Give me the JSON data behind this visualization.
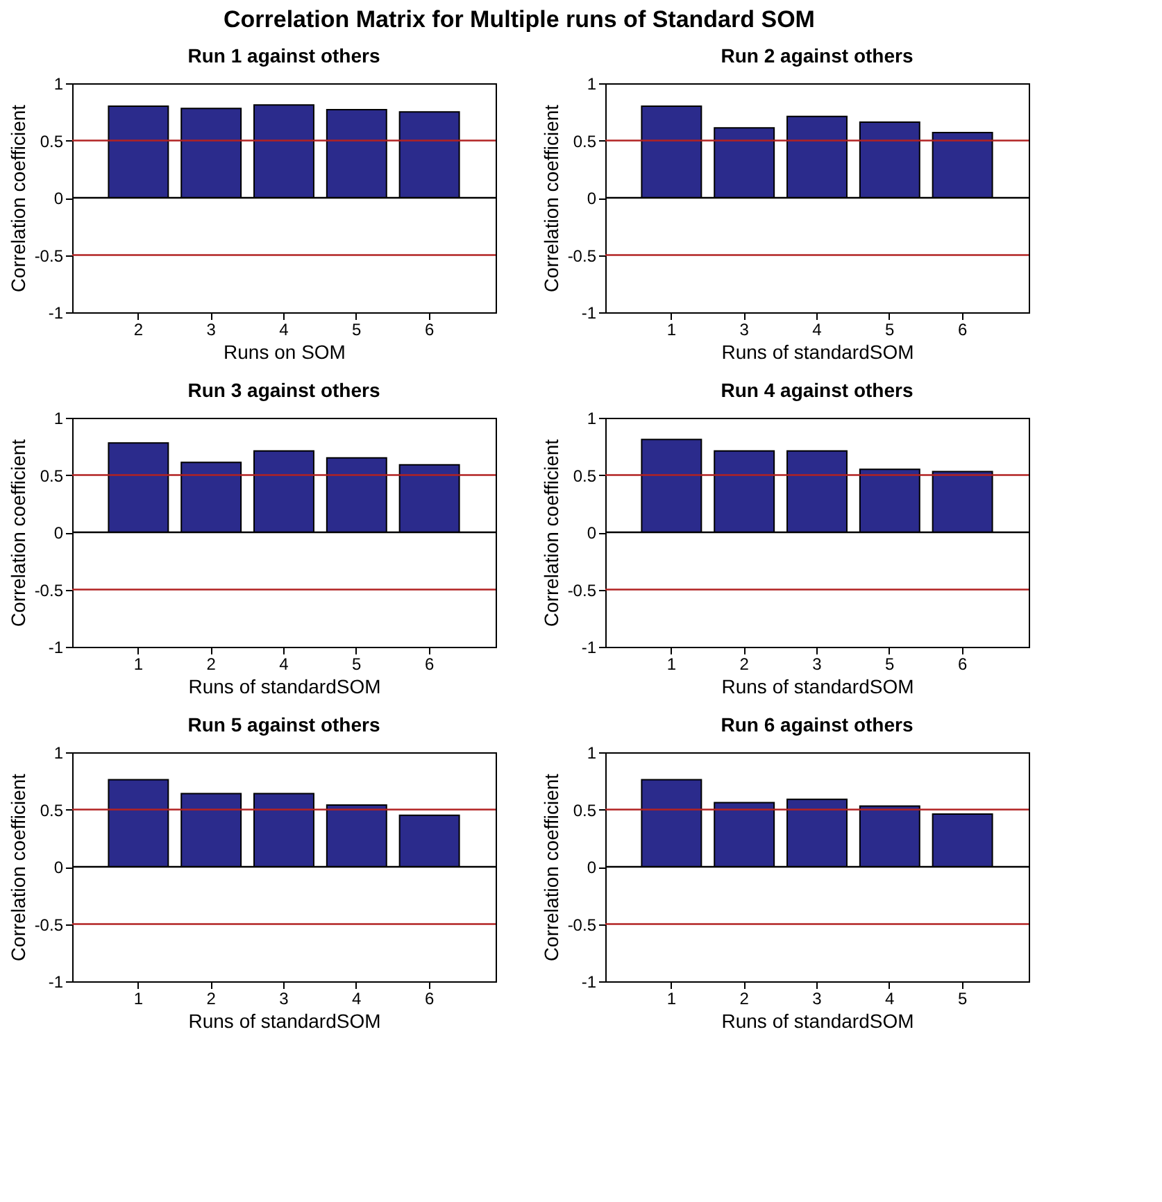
{
  "chart_data": [
    {
      "type": "other",
      "title": "Correlation Matrix for Multiple runs of Standard SOM"
    },
    {
      "type": "bar",
      "title": "Run 1 against others",
      "xlabel": "Runs on SOM",
      "ylabel": "Correlation coefficient",
      "categories": [
        "2",
        "3",
        "4",
        "5",
        "6"
      ],
      "values": [
        0.8,
        0.78,
        0.81,
        0.77,
        0.75
      ],
      "color": "#2b2b8c",
      "ylim": [
        -1,
        1
      ],
      "yticks": [
        -1,
        -0.5,
        0,
        0.5,
        1
      ],
      "grid": false,
      "ref_lines": [
        {
          "axis": "y",
          "value": 0.5,
          "color": "#b22222"
        },
        {
          "axis": "y",
          "value": -0.5,
          "color": "#b22222"
        },
        {
          "axis": "y",
          "value": 0,
          "color": "#000000"
        }
      ]
    },
    {
      "type": "bar",
      "title": "Run 2 against others",
      "xlabel": "Runs of standardSOM",
      "ylabel": "Correlation coefficient",
      "categories": [
        "1",
        "3",
        "4",
        "5",
        "6"
      ],
      "values": [
        0.8,
        0.61,
        0.71,
        0.66,
        0.57
      ],
      "color": "#2b2b8c",
      "ylim": [
        -1,
        1
      ],
      "yticks": [
        -1,
        -0.5,
        0,
        0.5,
        1
      ],
      "grid": false,
      "ref_lines": [
        {
          "axis": "y",
          "value": 0.5,
          "color": "#b22222"
        },
        {
          "axis": "y",
          "value": -0.5,
          "color": "#b22222"
        },
        {
          "axis": "y",
          "value": 0,
          "color": "#000000"
        }
      ]
    },
    {
      "type": "bar",
      "title": "Run 3 against others",
      "xlabel": "Runs of standardSOM",
      "ylabel": "Correlation coefficient",
      "categories": [
        "1",
        "2",
        "4",
        "5",
        "6"
      ],
      "values": [
        0.78,
        0.61,
        0.71,
        0.65,
        0.59
      ],
      "color": "#2b2b8c",
      "ylim": [
        -1,
        1
      ],
      "yticks": [
        -1,
        -0.5,
        0,
        0.5,
        1
      ],
      "grid": false,
      "ref_lines": [
        {
          "axis": "y",
          "value": 0.5,
          "color": "#b22222"
        },
        {
          "axis": "y",
          "value": -0.5,
          "color": "#b22222"
        },
        {
          "axis": "y",
          "value": 0,
          "color": "#000000"
        }
      ]
    },
    {
      "type": "bar",
      "title": "Run 4 against others",
      "xlabel": "Runs of standardSOM",
      "ylabel": "Correlation coefficient",
      "categories": [
        "1",
        "2",
        "3",
        "5",
        "6"
      ],
      "values": [
        0.81,
        0.71,
        0.71,
        0.55,
        0.53
      ],
      "color": "#2b2b8c",
      "ylim": [
        -1,
        1
      ],
      "yticks": [
        -1,
        -0.5,
        0,
        0.5,
        1
      ],
      "grid": false,
      "ref_lines": [
        {
          "axis": "y",
          "value": 0.5,
          "color": "#b22222"
        },
        {
          "axis": "y",
          "value": -0.5,
          "color": "#b22222"
        },
        {
          "axis": "y",
          "value": 0,
          "color": "#000000"
        }
      ]
    },
    {
      "type": "bar",
      "title": "Run 5 against others",
      "xlabel": "Runs of standardSOM",
      "ylabel": "Correlation coefficient",
      "categories": [
        "1",
        "2",
        "3",
        "4",
        "6"
      ],
      "values": [
        0.76,
        0.64,
        0.64,
        0.54,
        0.45
      ],
      "color": "#2b2b8c",
      "ylim": [
        -1,
        1
      ],
      "yticks": [
        -1,
        -0.5,
        0,
        0.5,
        1
      ],
      "grid": false,
      "ref_lines": [
        {
          "axis": "y",
          "value": 0.5,
          "color": "#b22222"
        },
        {
          "axis": "y",
          "value": -0.5,
          "color": "#b22222"
        },
        {
          "axis": "y",
          "value": 0,
          "color": "#000000"
        }
      ]
    },
    {
      "type": "bar",
      "title": "Run 6 against others",
      "xlabel": "Runs of standardSOM",
      "ylabel": "Correlation coefficient",
      "categories": [
        "1",
        "2",
        "3",
        "4",
        "5"
      ],
      "values": [
        0.76,
        0.56,
        0.59,
        0.53,
        0.46
      ],
      "color": "#2b2b8c",
      "ylim": [
        -1,
        1
      ],
      "yticks": [
        -1,
        -0.5,
        0,
        0.5,
        1
      ],
      "grid": false,
      "ref_lines": [
        {
          "axis": "y",
          "value": 0.5,
          "color": "#b22222"
        },
        {
          "axis": "y",
          "value": -0.5,
          "color": "#b22222"
        },
        {
          "axis": "y",
          "value": 0,
          "color": "#000000"
        }
      ]
    }
  ]
}
